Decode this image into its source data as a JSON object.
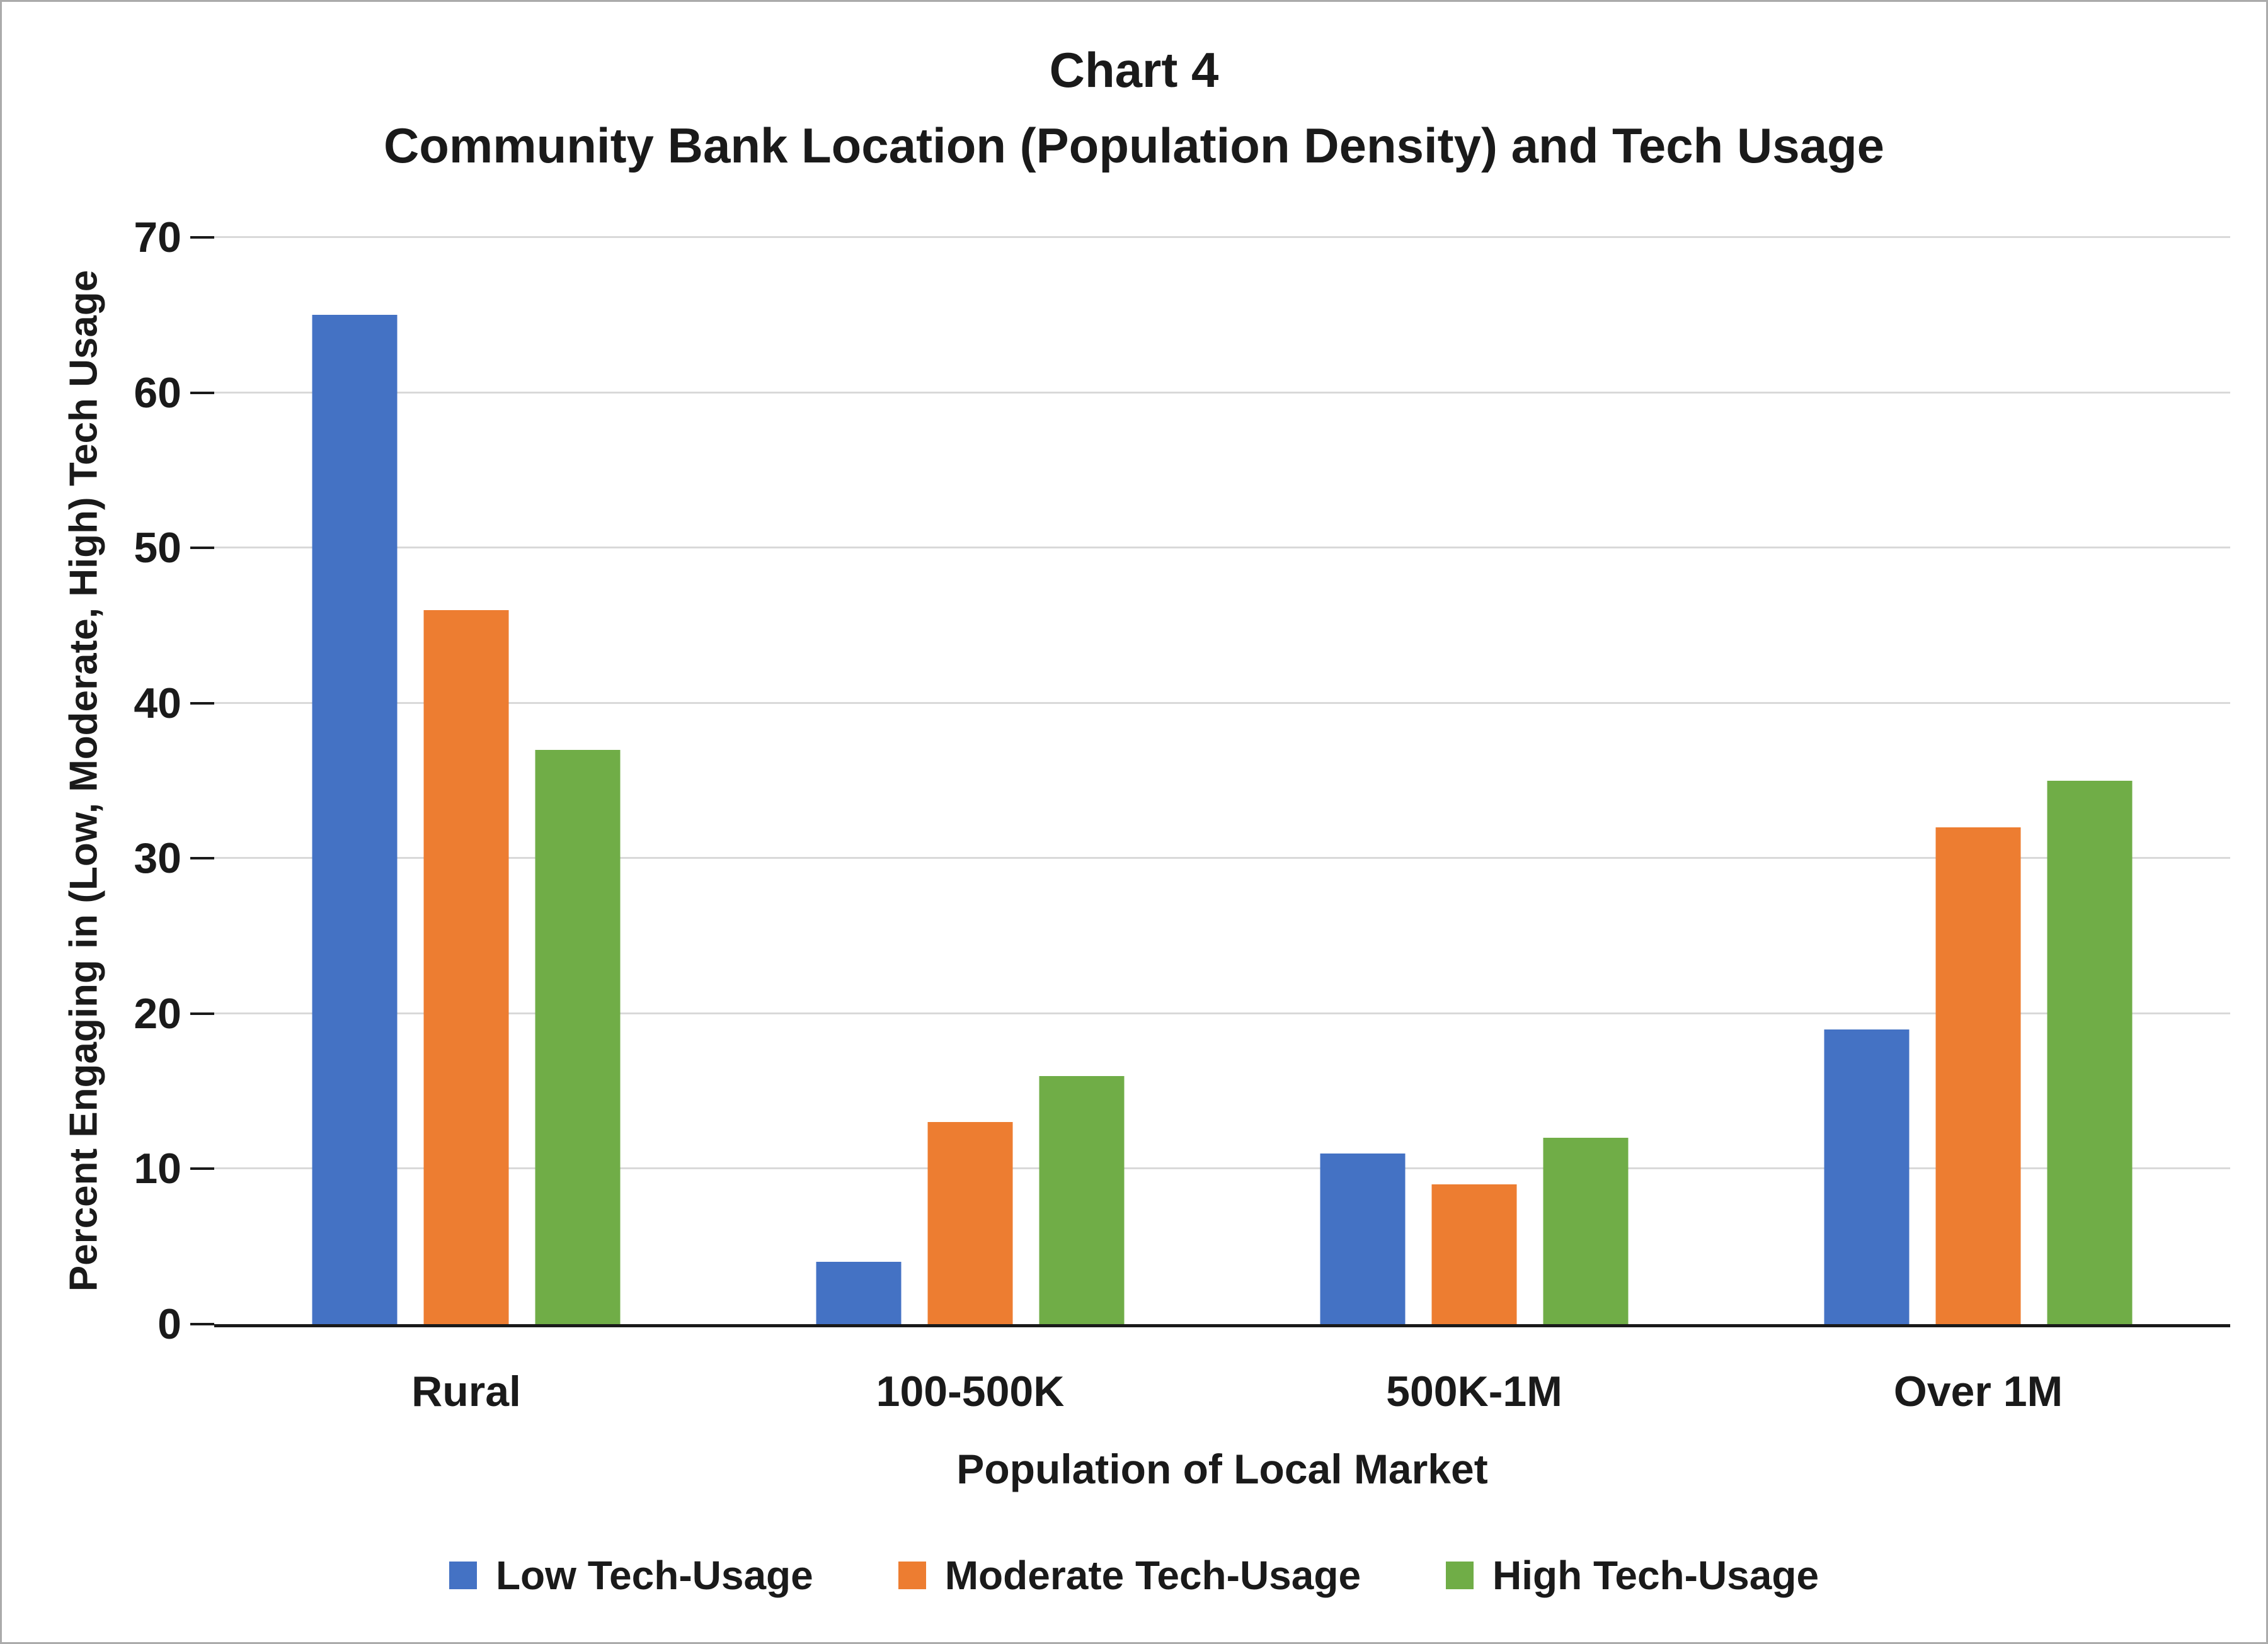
{
  "chart_data": {
    "type": "bar",
    "title": "Chart 4",
    "subtitle": "Community Bank Location (Population Density) and Tech Usage",
    "categories": [
      "Rural",
      "100-500K",
      "500K-1M",
      "Over 1M"
    ],
    "series": [
      {
        "name": "Low Tech-Usage",
        "color": "#4472C4",
        "values": [
          65,
          4,
          11,
          19
        ]
      },
      {
        "name": "Moderate Tech-Usage",
        "color": "#ED7D31",
        "values": [
          46,
          13,
          9,
          32
        ]
      },
      {
        "name": "High Tech-Usage",
        "color": "#70AD47",
        "values": [
          37,
          16,
          12,
          35
        ]
      }
    ],
    "xlabel": "Population of Local Market",
    "ylabel": "Percent Engaging in (Low, Moderate, High) Tech Usage",
    "ylim": [
      0,
      70
    ],
    "ytick_step": 10,
    "yticks": [
      0,
      10,
      20,
      30,
      40,
      50,
      60,
      70
    ],
    "grid": true,
    "legend_position": "bottom",
    "colors": {
      "axis": "#1a1a1a",
      "gridline": "#d9d9d9",
      "page_border": "#ababab",
      "background": "#ffffff"
    }
  }
}
